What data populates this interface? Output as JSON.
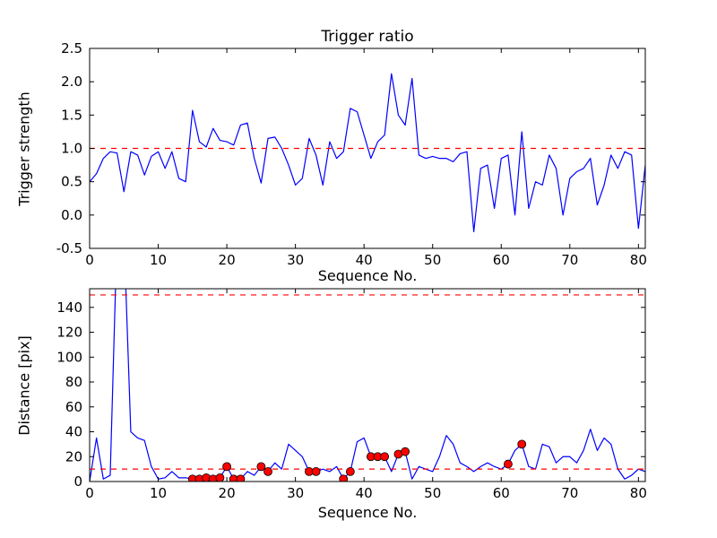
{
  "figure": {
    "background": "#ffffff",
    "line_color": "#0000ff",
    "threshold_color": "#ff0000",
    "marker_fill": "#ff0000",
    "marker_edge": "#000000"
  },
  "chart_data": [
    {
      "type": "line",
      "title": "Trigger ratio",
      "xlabel": "Sequence No.",
      "ylabel": "Trigger strength",
      "xlim": [
        0,
        81
      ],
      "ylim": [
        -0.5,
        2.5
      ],
      "grid": false,
      "legend": "none",
      "xticks": [
        0,
        10,
        20,
        30,
        40,
        50,
        60,
        70,
        80
      ],
      "xticklabels": [
        "0",
        "10",
        "20",
        "30",
        "40",
        "50",
        "60",
        "70",
        "80"
      ],
      "yticks": [
        -0.5,
        0.0,
        0.5,
        1.0,
        1.5,
        2.0,
        2.5
      ],
      "yticklabels": [
        "-0.5",
        "0.0",
        "0.5",
        "1.0",
        "1.5",
        "2.0",
        "2.5"
      ],
      "series": [
        {
          "name": "trigger-strength",
          "color": "#0000ff",
          "style": "solid",
          "y": [
            0.5,
            0.62,
            0.85,
            0.95,
            0.93,
            0.35,
            0.95,
            0.9,
            0.6,
            0.88,
            0.95,
            0.7,
            0.95,
            0.55,
            0.5,
            1.57,
            1.1,
            1.02,
            1.3,
            1.12,
            1.1,
            1.05,
            1.35,
            1.38,
            0.85,
            0.48,
            1.15,
            1.17,
            1.0,
            0.75,
            0.45,
            0.55,
            1.15,
            0.9,
            0.45,
            1.1,
            0.85,
            0.95,
            1.6,
            1.55,
            1.2,
            0.85,
            1.1,
            1.2,
            2.12,
            1.5,
            1.35,
            2.05,
            0.9,
            0.85,
            0.88,
            0.85,
            0.85,
            0.8,
            0.92,
            0.95,
            -0.25,
            0.7,
            0.75,
            0.1,
            0.85,
            0.9,
            0.0,
            1.25,
            0.1,
            0.5,
            0.45,
            0.9,
            0.7,
            0.0,
            0.55,
            0.65,
            0.7,
            0.85,
            0.15,
            0.45,
            0.9,
            0.7,
            0.95,
            0.9,
            -0.2,
            0.75
          ]
        },
        {
          "name": "trigger-threshold",
          "color": "#ff0000",
          "style": "dashed",
          "x": [
            0,
            81
          ],
          "y": [
            1.0,
            1.0
          ]
        }
      ]
    },
    {
      "type": "line",
      "title": "",
      "xlabel": "Sequence No.",
      "ylabel": "Distance [pix]",
      "xlim": [
        0,
        81
      ],
      "ylim": [
        0,
        155
      ],
      "grid": false,
      "legend": "none",
      "xticks": [
        0,
        10,
        20,
        30,
        40,
        50,
        60,
        70,
        80
      ],
      "xticklabels": [
        "0",
        "10",
        "20",
        "30",
        "40",
        "50",
        "60",
        "70",
        "80"
      ],
      "yticks": [
        0,
        20,
        40,
        60,
        80,
        100,
        120,
        140
      ],
      "yticklabels": [
        "0",
        "20",
        "40",
        "60",
        "80",
        "100",
        "120",
        "140"
      ],
      "series": [
        {
          "name": "distance",
          "color": "#0000ff",
          "style": "solid",
          "y": [
            0,
            35,
            2,
            5,
            200,
            200,
            40,
            35,
            33,
            12,
            2,
            3,
            8,
            3,
            3,
            2,
            2,
            3,
            2,
            3,
            12,
            2,
            2,
            8,
            5,
            12,
            8,
            15,
            10,
            30,
            25,
            20,
            8,
            8,
            10,
            8,
            12,
            2,
            8,
            32,
            35,
            20,
            20,
            20,
            8,
            22,
            24,
            2,
            12,
            10,
            8,
            20,
            37,
            30,
            15,
            12,
            8,
            12,
            15,
            12,
            10,
            14,
            25,
            30,
            12,
            10,
            30,
            28,
            15,
            20,
            20,
            15,
            25,
            42,
            25,
            35,
            30,
            10,
            2,
            5,
            10,
            8
          ]
        },
        {
          "name": "upper-threshold",
          "color": "#ff0000",
          "style": "dashed",
          "x": [
            0,
            81
          ],
          "y": [
            150,
            150
          ]
        },
        {
          "name": "lower-threshold",
          "color": "#ff0000",
          "style": "dashed",
          "x": [
            0,
            81
          ],
          "y": [
            10,
            10
          ]
        },
        {
          "name": "trigger-events",
          "color": "#ff0000",
          "style": "markers",
          "marker": "o",
          "points": [
            [
              15,
              2
            ],
            [
              16,
              2
            ],
            [
              17,
              3
            ],
            [
              18,
              2
            ],
            [
              19,
              3
            ],
            [
              20,
              12
            ],
            [
              21,
              2
            ],
            [
              22,
              2
            ],
            [
              25,
              12
            ],
            [
              26,
              8
            ],
            [
              32,
              8
            ],
            [
              33,
              8
            ],
            [
              37,
              2
            ],
            [
              38,
              8
            ],
            [
              41,
              20
            ],
            [
              42,
              20
            ],
            [
              43,
              20
            ],
            [
              45,
              22
            ],
            [
              46,
              24
            ],
            [
              61,
              14
            ],
            [
              63,
              30
            ]
          ]
        }
      ]
    }
  ]
}
